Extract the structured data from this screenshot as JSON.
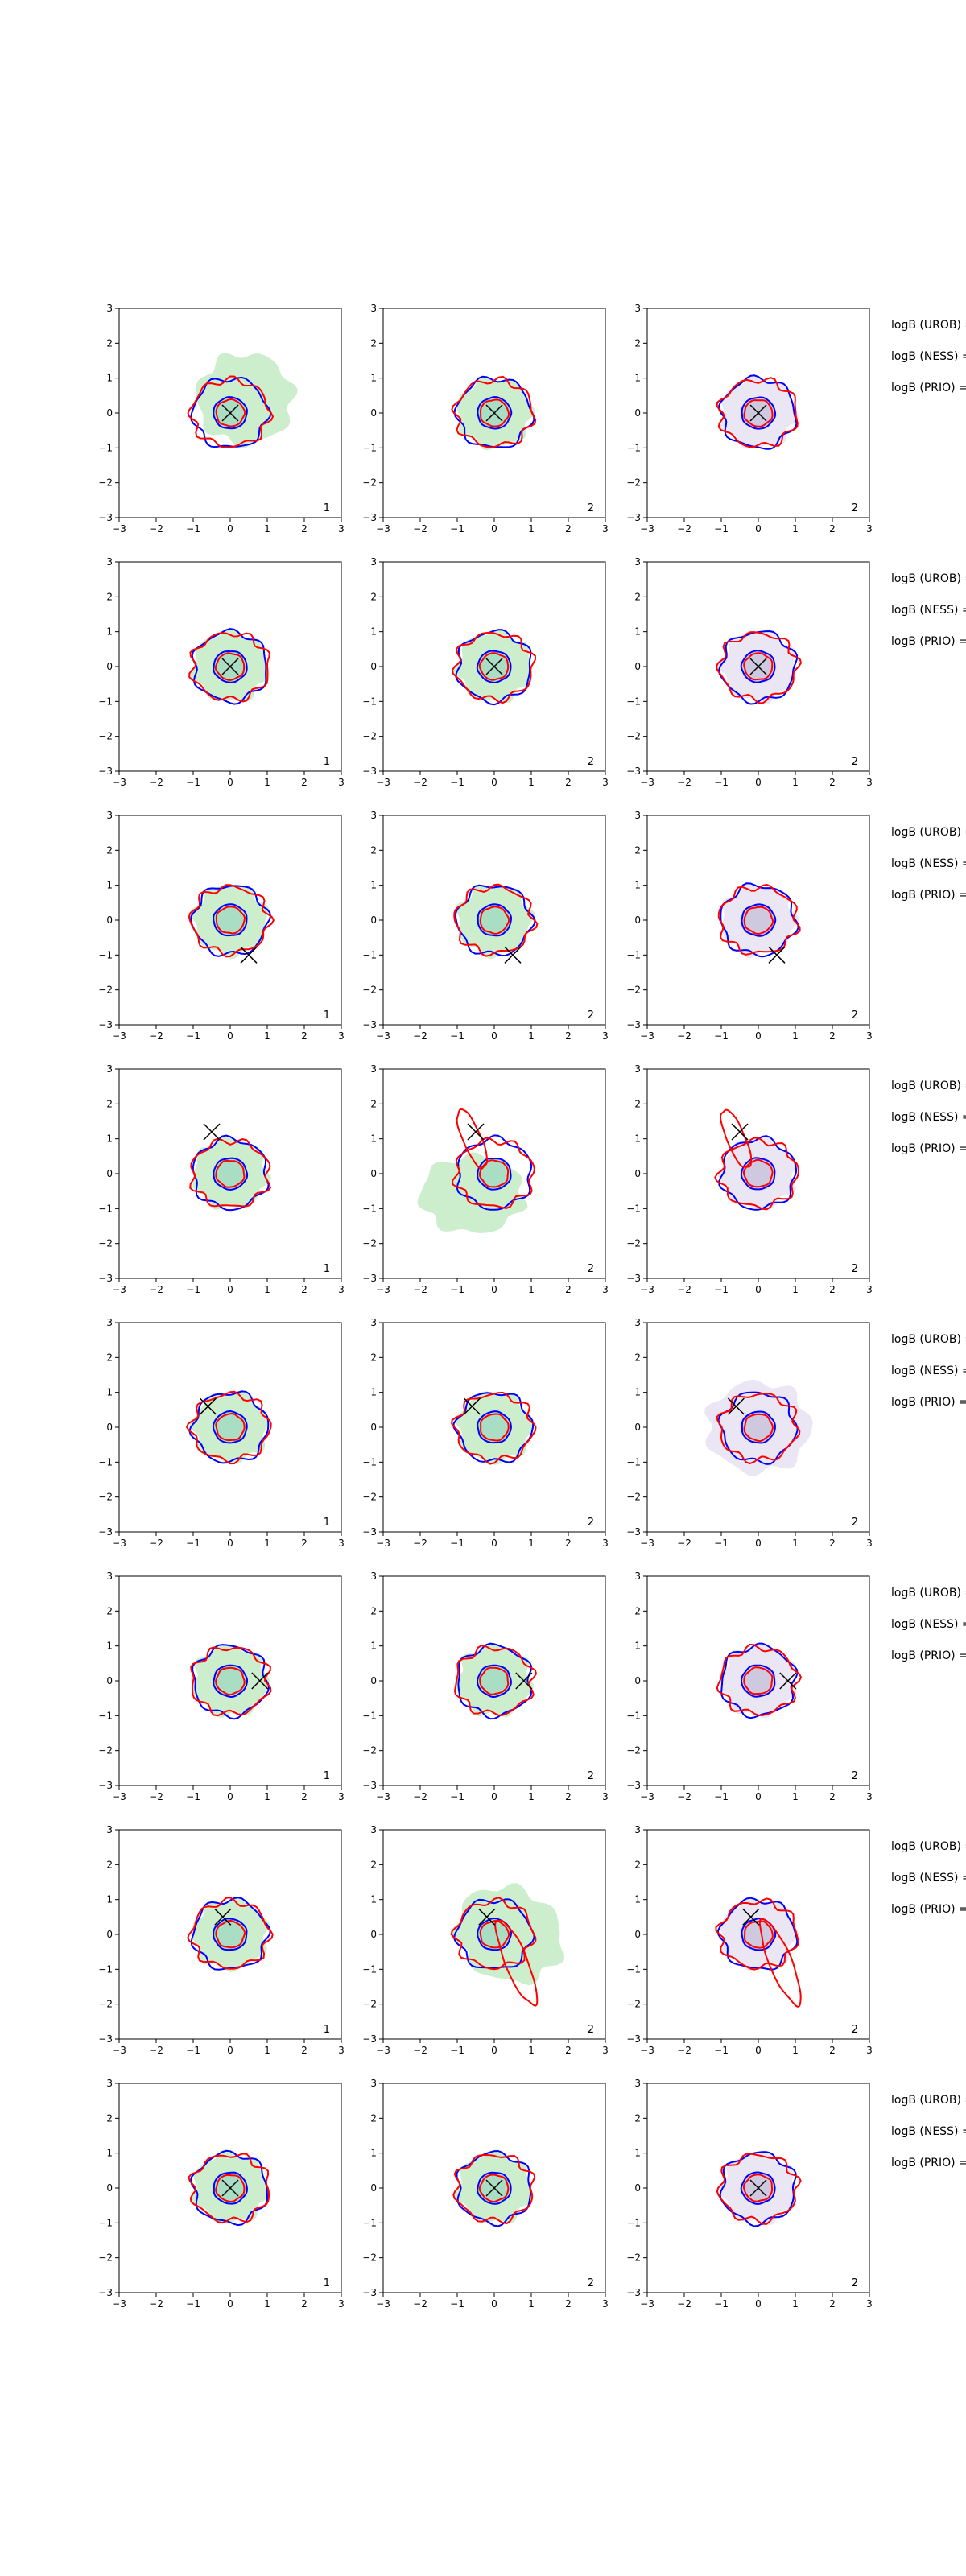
{
  "figure": {
    "rows": 8,
    "cols": 3,
    "xlim": [
      -3,
      3
    ],
    "ylim": [
      -3,
      3
    ],
    "ticks": [
      "−3",
      "−2",
      "−1",
      "0",
      "1",
      "2",
      "3"
    ],
    "tick_values": [
      -3,
      -2,
      -1,
      0,
      1,
      2,
      3
    ],
    "panel_notes": [
      "1",
      "2",
      "2"
    ],
    "row_labels": [
      "logB (UROB) =",
      "logB (NESS) =",
      "logB (PRIO) ="
    ],
    "colors": {
      "fill_green": "#cdeecd",
      "fill_lavender": "#ebe6f3",
      "contour_red": "#ff0000",
      "contour_blue": "#0000ff",
      "marker": "#000000"
    }
  },
  "chart_data": {
    "type": "scatter",
    "description_series": [
      "filled density",
      "red contours",
      "blue contours",
      "true-value marker"
    ],
    "markers": [
      {
        "row": 1,
        "x": 0.0,
        "y": 0.0
      },
      {
        "row": 2,
        "x": 0.0,
        "y": 0.0
      },
      {
        "row": 3,
        "x": 0.5,
        "y": -1.0
      },
      {
        "row": 4,
        "x": -0.5,
        "y": 1.2
      },
      {
        "row": 5,
        "x": -0.6,
        "y": 0.6
      },
      {
        "row": 6,
        "x": 0.8,
        "y": 0.0
      },
      {
        "row": 7,
        "x": -0.2,
        "y": 0.5
      },
      {
        "row": 8,
        "x": 0.0,
        "y": 0.0
      }
    ],
    "xlim": [
      -3,
      3
    ],
    "ylim": [
      -3,
      3
    ]
  }
}
